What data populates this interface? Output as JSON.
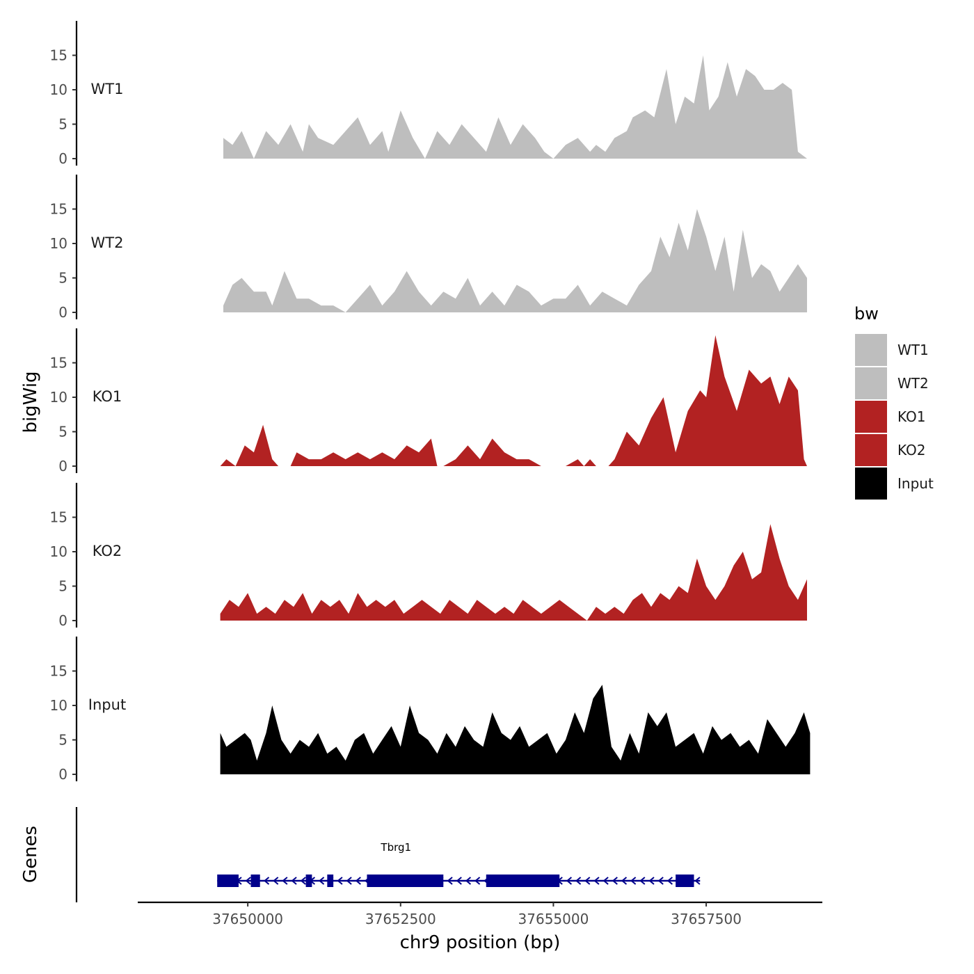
{
  "chart_data": {
    "type": "area",
    "title": "",
    "ylabel": "bigWig",
    "xlabel": "chr9 position (bp)",
    "ylim": [
      0,
      20
    ],
    "yticks": [
      0,
      5,
      10,
      15
    ],
    "xlim": [
      37648200,
      37659400
    ],
    "xticks": [
      37650000,
      37652500,
      37655000,
      37657500
    ],
    "xticklabels": [
      "37650000",
      "37652500",
      "37655000",
      "37657500"
    ],
    "legend": {
      "title": "bw",
      "position": "right",
      "items": [
        {
          "label": "WT1",
          "color": "#bebebe"
        },
        {
          "label": "WT2",
          "color": "#bebebe"
        },
        {
          "label": "KO1",
          "color": "#b22222"
        },
        {
          "label": "KO2",
          "color": "#b22222"
        },
        {
          "label": "Input",
          "color": "#000000"
        }
      ]
    },
    "series": [
      {
        "name": "WT1",
        "color": "#bebebe",
        "x": [
          37649600,
          37649750,
          37649900,
          37650100,
          37650300,
          37650500,
          37650700,
          37650900,
          37651000,
          37651150,
          37651400,
          37651600,
          37651800,
          37652000,
          37652200,
          37652300,
          37652500,
          37652700,
          37652900,
          37653100,
          37653300,
          37653500,
          37653700,
          37653900,
          37654100,
          37654300,
          37654500,
          37654700,
          37654850,
          37655000,
          37655200,
          37655400,
          37655600,
          37655700,
          37655850,
          37656000,
          37656200,
          37656300,
          37656500,
          37656650,
          37656850,
          37657000,
          37657150,
          37657300,
          37657450,
          37657550,
          37657700,
          37657850,
          37658000,
          37658150,
          37658300,
          37658450,
          37658600,
          37658750,
          37658900,
          37659000,
          37659150
        ],
        "values": [
          3,
          2,
          4,
          0,
          4,
          2,
          5,
          1,
          5,
          3,
          2,
          4,
          6,
          2,
          4,
          1,
          7,
          3,
          0,
          4,
          2,
          5,
          3,
          1,
          6,
          2,
          5,
          3,
          1,
          0,
          2,
          3,
          1,
          2,
          1,
          3,
          4,
          6,
          7,
          6,
          13,
          5,
          9,
          8,
          15,
          7,
          9,
          14,
          9,
          13,
          12,
          10,
          10,
          11,
          10,
          1,
          0
        ]
      },
      {
        "name": "WT2",
        "color": "#bebebe",
        "x": [
          37649600,
          37649750,
          37649900,
          37650100,
          37650300,
          37650400,
          37650600,
          37650800,
          37651000,
          37651200,
          37651400,
          37651600,
          37651800,
          37652000,
          37652200,
          37652400,
          37652600,
          37652800,
          37653000,
          37653200,
          37653400,
          37653600,
          37653800,
          37654000,
          37654200,
          37654400,
          37654600,
          37654800,
          37655000,
          37655200,
          37655400,
          37655600,
          37655800,
          37656000,
          37656200,
          37656400,
          37656600,
          37656750,
          37656900,
          37657050,
          37657200,
          37657350,
          37657500,
          37657650,
          37657800,
          37657950,
          37658100,
          37658250,
          37658400,
          37658550,
          37658700,
          37658850,
          37659000,
          37659150
        ],
        "values": [
          1,
          4,
          5,
          3,
          3,
          1,
          6,
          2,
          2,
          1,
          1,
          0,
          2,
          4,
          1,
          3,
          6,
          3,
          1,
          3,
          2,
          5,
          1,
          3,
          1,
          4,
          3,
          1,
          2,
          2,
          4,
          1,
          3,
          2,
          1,
          4,
          6,
          11,
          8,
          13,
          9,
          15,
          11,
          6,
          11,
          3,
          12,
          5,
          7,
          6,
          3,
          5,
          7,
          5
        ]
      },
      {
        "name": "KO1",
        "color": "#b22222",
        "x": [
          37649550,
          37649650,
          37649800,
          37649950,
          37650100,
          37650250,
          37650400,
          37650500,
          37650600,
          37650700,
          37650800,
          37651000,
          37651200,
          37651400,
          37651600,
          37651800,
          37652000,
          37652200,
          37652400,
          37652600,
          37652800,
          37653000,
          37653100,
          37653200,
          37653400,
          37653600,
          37653800,
          37654000,
          37654200,
          37654400,
          37654600,
          37654800,
          37654900,
          37655000,
          37655200,
          37655400,
          37655500,
          37655600,
          37655700,
          37655800,
          37655900,
          37656000,
          37656200,
          37656400,
          37656600,
          37656800,
          37657000,
          37657200,
          37657400,
          37657500,
          37657650,
          37657800,
          37658000,
          37658200,
          37658400,
          37658550,
          37658700,
          37658850,
          37659000,
          37659100,
          37659150
        ],
        "values": [
          0,
          1,
          0,
          3,
          2,
          6,
          1,
          0,
          0,
          0,
          2,
          1,
          1,
          2,
          1,
          2,
          1,
          2,
          1,
          3,
          2,
          4,
          0,
          0,
          1,
          3,
          1,
          4,
          2,
          1,
          1,
          0,
          0,
          0,
          0,
          1,
          0,
          1,
          0,
          0,
          0,
          1,
          5,
          3,
          7,
          10,
          2,
          8,
          11,
          10,
          19,
          13,
          8,
          14,
          12,
          13,
          9,
          13,
          11,
          1,
          0
        ]
      },
      {
        "name": "KO2",
        "color": "#b22222",
        "x": [
          37649550,
          37649700,
          37649850,
          37650000,
          37650150,
          37650300,
          37650450,
          37650600,
          37650750,
          37650900,
          37651050,
          37651200,
          37651350,
          37651500,
          37651650,
          37651800,
          37651950,
          37652100,
          37652250,
          37652400,
          37652550,
          37652700,
          37652850,
          37653000,
          37653150,
          37653300,
          37653450,
          37653600,
          37653750,
          37653900,
          37654050,
          37654200,
          37654350,
          37654500,
          37654650,
          37654800,
          37654950,
          37655100,
          37655250,
          37655400,
          37655550,
          37655700,
          37655850,
          37656000,
          37656150,
          37656300,
          37656450,
          37656600,
          37656750,
          37656900,
          37657050,
          37657200,
          37657350,
          37657500,
          37657650,
          37657800,
          37657950,
          37658100,
          37658250,
          37658400,
          37658550,
          37658700,
          37658850,
          37659000,
          37659150
        ],
        "values": [
          1,
          3,
          2,
          4,
          1,
          2,
          1,
          3,
          2,
          4,
          1,
          3,
          2,
          3,
          1,
          4,
          2,
          3,
          2,
          3,
          1,
          2,
          3,
          2,
          1,
          3,
          2,
          1,
          3,
          2,
          1,
          2,
          1,
          3,
          2,
          1,
          2,
          3,
          2,
          1,
          0,
          2,
          1,
          2,
          1,
          3,
          4,
          2,
          4,
          3,
          5,
          4,
          9,
          5,
          3,
          5,
          8,
          10,
          6,
          7,
          14,
          9,
          5,
          3,
          6
        ]
      },
      {
        "name": "Input",
        "color": "#000000",
        "x": [
          37649550,
          37649650,
          37649800,
          37649950,
          37650050,
          37650150,
          37650300,
          37650400,
          37650550,
          37650700,
          37650850,
          37651000,
          37651150,
          37651300,
          37651450,
          37651600,
          37651750,
          37651900,
          37652050,
          37652200,
          37652350,
          37652500,
          37652650,
          37652800,
          37652950,
          37653100,
          37653250,
          37653400,
          37653550,
          37653700,
          37653850,
          37654000,
          37654150,
          37654300,
          37654450,
          37654600,
          37654750,
          37654900,
          37655050,
          37655200,
          37655350,
          37655500,
          37655650,
          37655800,
          37655950,
          37656100,
          37656250,
          37656400,
          37656550,
          37656700,
          37656850,
          37657000,
          37657150,
          37657300,
          37657450,
          37657600,
          37657750,
          37657900,
          37658050,
          37658200,
          37658350,
          37658500,
          37658650,
          37658800,
          37658950,
          37659100,
          37659200
        ],
        "values": [
          6,
          4,
          5,
          6,
          5,
          2,
          6,
          10,
          5,
          3,
          5,
          4,
          6,
          3,
          4,
          2,
          5,
          6,
          3,
          5,
          7,
          4,
          10,
          6,
          5,
          3,
          6,
          4,
          7,
          5,
          4,
          9,
          6,
          5,
          7,
          4,
          5,
          6,
          3,
          5,
          9,
          6,
          11,
          13,
          4,
          2,
          6,
          3,
          9,
          7,
          9,
          4,
          5,
          6,
          3,
          7,
          5,
          6,
          4,
          5,
          3,
          8,
          6,
          4,
          6,
          9,
          6
        ]
      }
    ],
    "genes_track": {
      "label": "Genes",
      "gene": {
        "name": "Tbrg1",
        "strand": "-",
        "start": 37649500,
        "end": 37657400,
        "color": "#00008b",
        "exons": [
          [
            37649500,
            37649850
          ],
          [
            37650050,
            37650200
          ],
          [
            37650950,
            37651050
          ],
          [
            37651300,
            37651400
          ],
          [
            37651950,
            37653200
          ],
          [
            37653900,
            37655100
          ],
          [
            37657000,
            37657300
          ]
        ]
      }
    }
  }
}
